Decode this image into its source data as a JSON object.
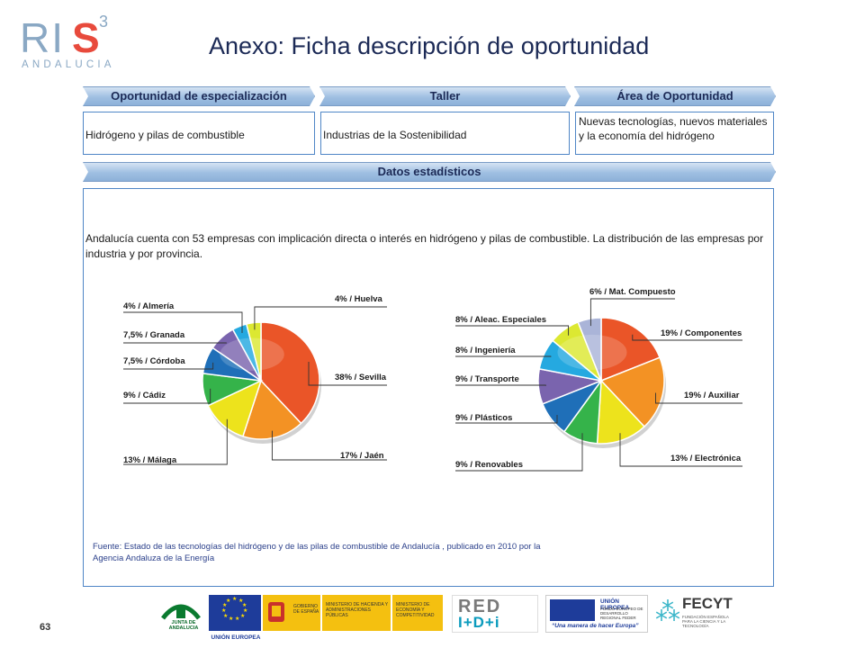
{
  "logo": {
    "ri": "RI",
    "s": "S",
    "sup": "3",
    "sub": "ANDALUCIA"
  },
  "title": "Anexo: Ficha descripción de oportunidad",
  "headers": {
    "oportunidad": "Oportunidad de especialización",
    "taller": "Taller",
    "area": "Área de Oportunidad",
    "datos": "Datos estadísticos"
  },
  "values": {
    "oportunidad": "Hidrógeno y pilas de combustible",
    "taller": "Industrias de la Sostenibilidad",
    "area": "Nuevas tecnologías, nuevos materiales y la economía del hidrógeno"
  },
  "stats_text": "Andalucía cuenta con 53 empresas con implicación directa o interés en hidrógeno y pilas de combustible. La distribución de las empresas por industria y por provincia.",
  "fuente": "Fuente: Estado de las tecnologías del hidrógeno y de las pilas de combustible de Andalucía , publicado en 2010 por la Agencia Andaluza de la Energía",
  "chart_data": [
    {
      "type": "pie",
      "slices": [
        {
          "label": "38% / Sevilla",
          "value": 38,
          "color": "#ea5528"
        },
        {
          "label": "17% / Jaén",
          "value": 17,
          "color": "#f39224"
        },
        {
          "label": "13% / Málaga",
          "value": 13,
          "color": "#ede31c"
        },
        {
          "label": "9% / Cádiz",
          "value": 9,
          "color": "#35b34a"
        },
        {
          "label": "7,5% / Córdoba",
          "value": 7.5,
          "color": "#1f6fb8"
        },
        {
          "label": "7,5% / Granada",
          "value": 7.5,
          "color": "#7a64ae"
        },
        {
          "label": "4% / Almería",
          "value": 4,
          "color": "#25a9e0"
        },
        {
          "label": "4% / Huelva",
          "value": 4,
          "color": "#dce832"
        }
      ]
    },
    {
      "type": "pie",
      "slices": [
        {
          "label": "19% / Componentes",
          "value": 19,
          "color": "#ea5528"
        },
        {
          "label": "19% / Auxiliar",
          "value": 19,
          "color": "#f39224"
        },
        {
          "label": "13% / Electrónica",
          "value": 13,
          "color": "#ede31c"
        },
        {
          "label": "9% / Renovables",
          "value": 9,
          "color": "#35b34a"
        },
        {
          "label": "9% / Plásticos",
          "value": 9,
          "color": "#1f6fb8"
        },
        {
          "label": "9% / Transporte",
          "value": 9,
          "color": "#7a64ae"
        },
        {
          "label": "8% / Ingeniería",
          "value": 8,
          "color": "#25a9e0"
        },
        {
          "label": "8% / Aleac. Especiales",
          "value": 8,
          "color": "#dce832"
        },
        {
          "label": "6% / Mat. Compuesto",
          "value": 6,
          "color": "#aab4d8"
        }
      ]
    }
  ],
  "page_number": "63",
  "footer": {
    "junta": "JUNTA DE ANDALUCIA",
    "eu1": "UNIÓN EUROPEA",
    "gobierno": "GOBIERNO DE ESPAÑA",
    "hacienda": "MINISTERIO DE HACIENDA Y ADMINISTRACIONES PÚBLICAS",
    "economia": "MINISTERIO DE ECONOMÍA Y COMPETITIVIDAD",
    "red1": "RED",
    "red2": "I+D+i",
    "eu2_title": "UNIÓN EUROPEA",
    "eu2_sub": "FONDO EUROPEO DE DESARROLLO REGIONAL FEDER",
    "eu2_motto": "“Una manera de hacer Europa”",
    "fecyt": "FECYT",
    "fecyt_sub": "FUNDACIÓN ESPAÑOLA PARA LA CIENCIA Y LA TECNOLOGÍA"
  }
}
